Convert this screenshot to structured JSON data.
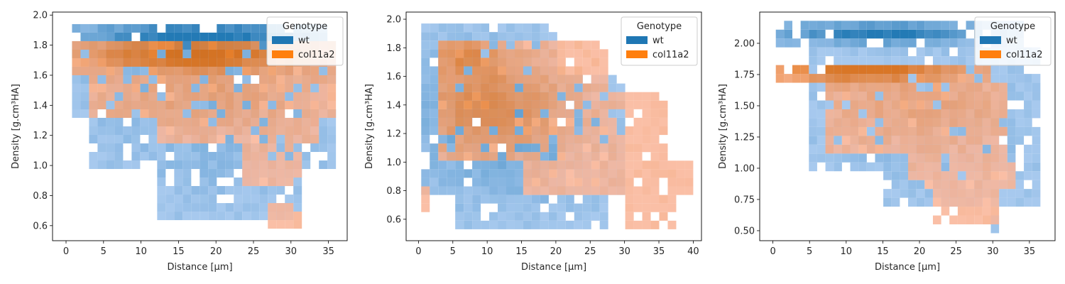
{
  "colors": {
    "wt": "#1f77b4",
    "col11a2": "#ff7f0e",
    "wt_cmap": [
      "#a5c8ee",
      "#1f77b4"
    ],
    "col11a2_cmap": [
      "#f9b69a",
      "#e06a0a"
    ]
  },
  "chart_data": [
    {
      "type": "heatmap",
      "panel": "left",
      "xlabel": "Distance [μm]",
      "ylabel": "Density [g.cm³HA]",
      "xlim": [
        -1.8,
        37.5
      ],
      "ylim": [
        0.5,
        2.02
      ],
      "xticks": [
        0,
        5,
        10,
        15,
        20,
        25,
        30,
        35
      ],
      "yticks": [
        0.6,
        0.8,
        1.0,
        1.2,
        1.4,
        1.6,
        1.8,
        2.0
      ],
      "ytick_labels": [
        "0.6",
        "0.8",
        "1.0",
        "1.2",
        "1.4",
        "1.6",
        "1.8",
        "2.0"
      ],
      "x_range": [
        0.8,
        36.0
      ],
      "y_range": [
        0.58,
        1.94
      ],
      "nx": 31,
      "ny": 24,
      "legend": {
        "title": "Genotype",
        "entries": [
          "wt",
          "col11a2"
        ],
        "position": "upper right"
      },
      "series": [
        {
          "name": "wt",
          "blobs": [
            {
              "x": 18,
              "y": 1.86,
              "sx": 11,
              "sy": 0.07,
              "w": 1.0
            },
            {
              "x": 18,
              "y": 1.55,
              "sx": 12,
              "sy": 0.22,
              "w": 0.25
            },
            {
              "x": 22,
              "y": 1.05,
              "sx": 10,
              "sy": 0.25,
              "w": 0.18
            }
          ],
          "region": [
            [
              0.8,
              1.85,
              36,
              1.94
            ],
            [
              0.8,
              1.3,
              36,
              1.85
            ],
            [
              3,
              0.95,
              36,
              1.35
            ],
            [
              12,
              0.62,
              32,
              1.0
            ]
          ]
        },
        {
          "name": "col11a2",
          "blobs": [
            {
              "x": 17,
              "y": 1.74,
              "sx": 10,
              "sy": 0.07,
              "w": 1.0
            },
            {
              "x": 18,
              "y": 1.5,
              "sx": 13,
              "sy": 0.2,
              "w": 0.3
            }
          ],
          "region": [
            [
              0.8,
              1.6,
              36,
              1.85
            ],
            [
              3,
              1.3,
              36,
              1.6
            ],
            [
              12,
              1.15,
              34,
              1.3
            ],
            [
              24,
              0.85,
              32,
              1.15
            ],
            [
              27,
              0.6,
              31,
              0.75
            ]
          ]
        }
      ]
    },
    {
      "type": "heatmap",
      "panel": "center",
      "xlabel": "Distance [μm]",
      "ylabel": "Density [g.cm³HA]",
      "xlim": [
        -1.8,
        41.2
      ],
      "ylim": [
        0.45,
        2.05
      ],
      "xticks": [
        0,
        5,
        10,
        15,
        20,
        25,
        30,
        35,
        40
      ],
      "yticks": [
        0.6,
        0.8,
        1.0,
        1.2,
        1.4,
        1.6,
        1.8,
        2.0
      ],
      "ytick_labels": [
        "0.6",
        "0.8",
        "1.0",
        "1.2",
        "1.4",
        "1.6",
        "1.8",
        "2.0"
      ],
      "x_range": [
        0.4,
        40.0
      ],
      "y_range": [
        0.53,
        1.97
      ],
      "nx": 32,
      "ny": 24,
      "legend": {
        "title": "Genotype",
        "entries": [
          "wt",
          "col11a2"
        ],
        "position": "upper right"
      },
      "series": [
        {
          "name": "wt",
          "blobs": [
            {
              "x": 10,
              "y": 1.35,
              "sx": 9,
              "sy": 0.35,
              "w": 0.35
            },
            {
              "x": 18,
              "y": 1.1,
              "sx": 10,
              "sy": 0.3,
              "w": 0.2
            }
          ],
          "region": [
            [
              1,
              1.6,
              20,
              1.95
            ],
            [
              1,
              0.8,
              30,
              1.6
            ],
            [
              5,
              0.55,
              28,
              0.8
            ]
          ]
        },
        {
          "name": "col11a2",
          "blobs": [
            {
              "x": 10,
              "y": 1.4,
              "sx": 8,
              "sy": 0.25,
              "w": 0.6
            },
            {
              "x": 7,
              "y": 1.75,
              "sx": 3,
              "sy": 0.08,
              "w": 0.5
            }
          ],
          "region": [
            [
              3,
              1.5,
              28,
              1.85
            ],
            [
              3,
              1.0,
              36,
              1.5
            ],
            [
              15,
              0.75,
              40,
              1.0
            ],
            [
              30,
              0.55,
              38,
              0.75
            ],
            [
              0.4,
              0.66,
              2,
              0.8
            ]
          ]
        }
      ]
    },
    {
      "type": "heatmap",
      "panel": "right",
      "xlabel": "Distance [μm]",
      "ylabel": "Density [g.cm³HA]",
      "xlim": [
        -1.8,
        38.5
      ],
      "ylim": [
        0.42,
        2.25
      ],
      "xticks": [
        0,
        5,
        10,
        15,
        20,
        25,
        30,
        35
      ],
      "yticks": [
        0.5,
        0.75,
        1.0,
        1.25,
        1.5,
        1.75,
        2.0
      ],
      "ytick_labels": [
        "0.50",
        "0.75",
        "1.00",
        "1.25",
        "1.50",
        "1.75",
        "2.00"
      ],
      "x_range": [
        0.4,
        36.5
      ],
      "y_range": [
        0.48,
        2.18
      ],
      "nx": 32,
      "ny": 24,
      "legend": {
        "title": "Genotype",
        "entries": [
          "wt",
          "col11a2"
        ],
        "position": "upper right"
      },
      "series": [
        {
          "name": "wt",
          "blobs": [
            {
              "x": 15,
              "y": 2.08,
              "sx": 10,
              "sy": 0.06,
              "w": 1.0
            },
            {
              "x": 22,
              "y": 1.3,
              "sx": 10,
              "sy": 0.3,
              "w": 0.2
            }
          ],
          "region": [
            [
              0.4,
              1.95,
              34,
              2.18
            ],
            [
              5,
              1.0,
              36,
              1.95
            ],
            [
              15,
              0.7,
              36.5,
              1.0
            ],
            [
              30,
              0.5,
              31,
              0.6
            ]
          ]
        },
        {
          "name": "col11a2",
          "blobs": [
            {
              "x": 12,
              "y": 1.78,
              "sx": 9,
              "sy": 0.06,
              "w": 1.0
            },
            {
              "x": 20,
              "y": 1.5,
              "sx": 12,
              "sy": 0.22,
              "w": 0.25
            }
          ],
          "region": [
            [
              0.4,
              1.65,
              30,
              1.85
            ],
            [
              7,
              1.15,
              32,
              1.65
            ],
            [
              19,
              0.85,
              33,
              1.15
            ],
            [
              22,
              0.55,
              31,
              0.85
            ]
          ]
        }
      ]
    }
  ]
}
